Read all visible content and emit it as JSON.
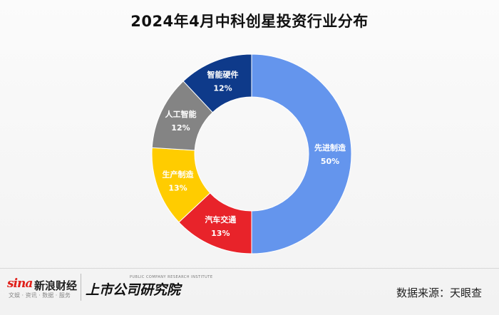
{
  "chart_data": {
    "type": "pie",
    "style": "donut",
    "title": "2024年4月中科创星投资行业分布",
    "slices": [
      {
        "label": "先进制造",
        "value": 50,
        "value_text": "50%",
        "color": "#6495ED"
      },
      {
        "label": "汽车交通",
        "value": 13,
        "value_text": "13%",
        "color": "#E8232A"
      },
      {
        "label": "生产制造",
        "value": 13,
        "value_text": "13%",
        "color": "#FFCC00"
      },
      {
        "label": "人工智能",
        "value": 12,
        "value_text": "12%",
        "color": "#848484"
      },
      {
        "label": "智能硬件",
        "value": 12,
        "value_text": "12%",
        "color": "#0E3A8A"
      }
    ],
    "label_color": "#ffffff",
    "legend": "none"
  },
  "footer": {
    "sina_logo": "sina",
    "sina_name": "新浪财经",
    "sina_slogan": "文娱 · 资讯 · 数据 · 服务",
    "institute_name": "上市公司研究院",
    "institute_en": "PUBLIC COMPANY RESEARCH INSTITUTE",
    "source": "数据来源：天眼查"
  }
}
